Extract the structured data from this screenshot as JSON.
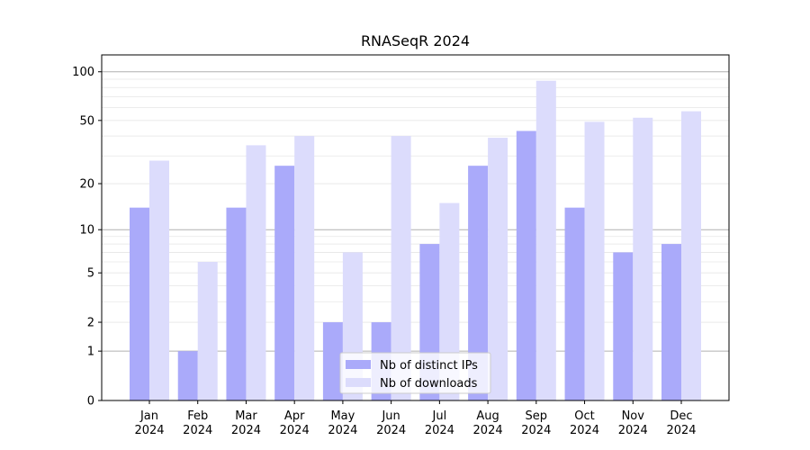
{
  "chart_data": {
    "type": "bar",
    "title": "RNASeqR 2024",
    "xlabel": "",
    "ylabel": "",
    "yscale": "log1p",
    "ylim": [
      0,
      127
    ],
    "yticks": [
      0,
      1,
      2,
      5,
      10,
      20,
      50,
      100
    ],
    "grid": true,
    "legend_position": "lower center",
    "categories": [
      "Jan\n2024",
      "Feb\n2024",
      "Mar\n2024",
      "Apr\n2024",
      "May\n2024",
      "Jun\n2024",
      "Jul\n2024",
      "Aug\n2024",
      "Sep\n2024",
      "Oct\n2024",
      "Nov\n2024",
      "Dec\n2024"
    ],
    "series": [
      {
        "name": "Nb of distinct IPs",
        "color": "#aaaafa",
        "values": [
          14,
          1,
          14,
          26,
          2,
          2,
          8,
          26,
          43,
          14,
          7,
          8
        ]
      },
      {
        "name": "Nb of downloads",
        "color": "#dcdcfc",
        "values": [
          28,
          6,
          35,
          40,
          7,
          40,
          15,
          39,
          88,
          49,
          52,
          57
        ]
      }
    ]
  }
}
